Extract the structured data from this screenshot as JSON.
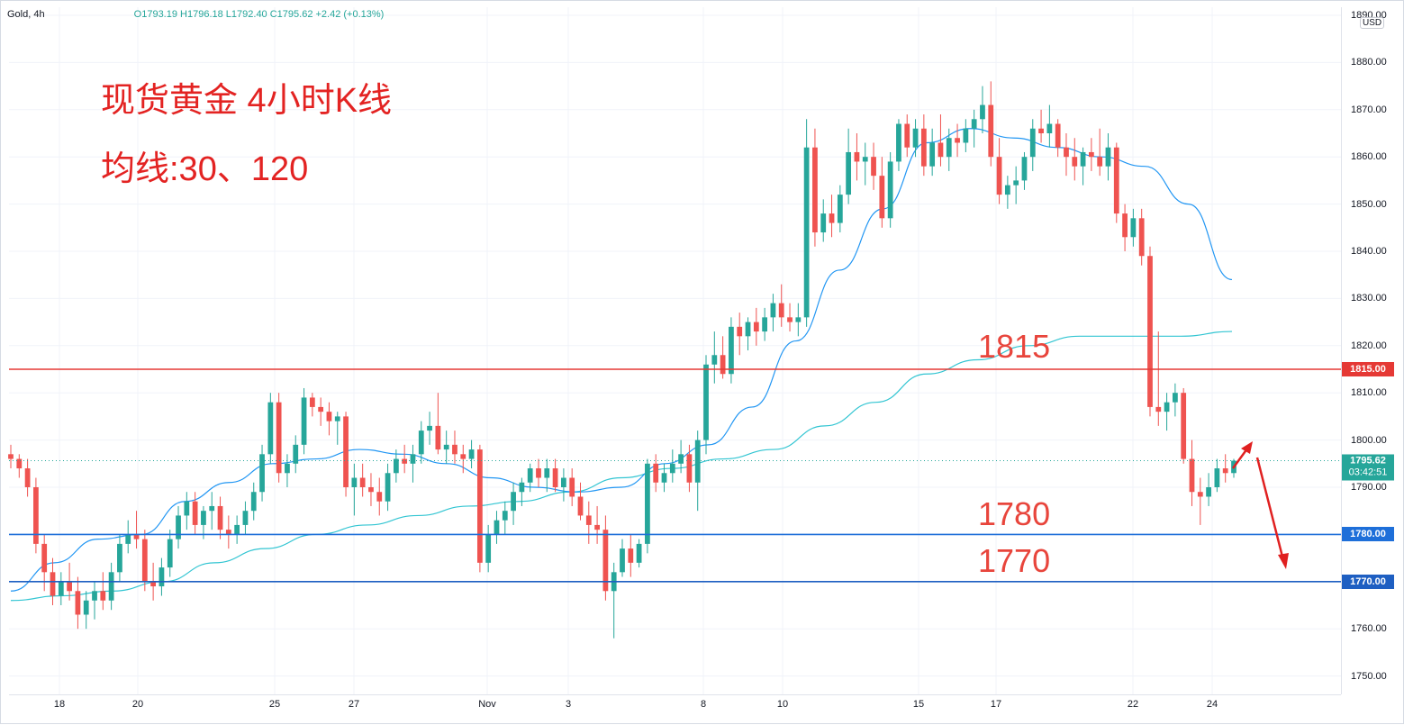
{
  "legend": {
    "symbol": "Gold, 4h",
    "ohlc": "O1793.19 H1796.18 L1792.40 C1795.62 +2.42 (+0.13%)"
  },
  "annotations": {
    "title": "现货黄金 4小时K线",
    "subtitle": "均线:30、120",
    "level_1815": "1815",
    "level_1780": "1780",
    "level_1770": "1770"
  },
  "axis": {
    "currency": "USD",
    "price_ticks": [
      "1890.00",
      "1880.00",
      "1870.00",
      "1860.00",
      "1850.00",
      "1840.00",
      "1830.00",
      "1820.00",
      "1810.00",
      "1800.00",
      "1790.00",
      "1780.00",
      "1770.00",
      "1760.00",
      "1750.00"
    ],
    "date_ticks": [
      "18",
      "20",
      "25",
      "27",
      "Nov",
      "3",
      "8",
      "10",
      "15",
      "17",
      "22",
      "24"
    ]
  },
  "price_tags": {
    "last_price": "1795.62",
    "countdown": "03:42:51",
    "line_1815": "1815.00",
    "line_1780": "1780.00",
    "line_1770": "1770.00"
  },
  "colors": {
    "up": "#26a69a",
    "down": "#ef5350",
    "ma30": "#2196f3",
    "ma120": "#32c5d2",
    "line_1815": "#e53935",
    "line_1780": "#1e6fd9",
    "line_1770": "#1e5fc2",
    "annotation": "#e32322"
  },
  "chart_data": {
    "type": "candlestick",
    "title": "现货黄金 4小时K线",
    "subtitle": "均线:30、120",
    "timeframe": "4h",
    "ylim": [
      1745,
      1892
    ],
    "grid": true,
    "x_labels": [
      "18",
      "20",
      "25",
      "27",
      "Nov",
      "3",
      "8",
      "10",
      "15",
      "17",
      "22",
      "24"
    ],
    "horizontal_lines": [
      1815,
      1780,
      1770
    ],
    "candles": [
      [
        1797,
        1799,
        1794,
        1796
      ],
      [
        1796,
        1797,
        1792,
        1794
      ],
      [
        1794,
        1796,
        1788,
        1790
      ],
      [
        1790,
        1792,
        1776,
        1778
      ],
      [
        1778,
        1780,
        1768,
        1772
      ],
      [
        1772,
        1775,
        1765,
        1767
      ],
      [
        1767,
        1772,
        1765,
        1770
      ],
      [
        1770,
        1774,
        1766,
        1768
      ],
      [
        1768,
        1771,
        1760,
        1763
      ],
      [
        1763,
        1768,
        1760,
        1766
      ],
      [
        1766,
        1770,
        1762,
        1768
      ],
      [
        1768,
        1772,
        1764,
        1766
      ],
      [
        1766,
        1774,
        1764,
        1772
      ],
      [
        1772,
        1780,
        1770,
        1778
      ],
      [
        1778,
        1783,
        1776,
        1780
      ],
      [
        1780,
        1785,
        1777,
        1779
      ],
      [
        1779,
        1781,
        1768,
        1770
      ],
      [
        1770,
        1774,
        1766,
        1769
      ],
      [
        1769,
        1775,
        1767,
        1773
      ],
      [
        1773,
        1781,
        1771,
        1779
      ],
      [
        1779,
        1786,
        1777,
        1784
      ],
      [
        1784,
        1789,
        1781,
        1787
      ],
      [
        1787,
        1789,
        1780,
        1782
      ],
      [
        1782,
        1786,
        1779,
        1785
      ],
      [
        1785,
        1789,
        1781,
        1786
      ],
      [
        1786,
        1788,
        1779,
        1781
      ],
      [
        1781,
        1784,
        1777,
        1780
      ],
      [
        1780,
        1784,
        1778,
        1782
      ],
      [
        1782,
        1787,
        1780,
        1785
      ],
      [
        1785,
        1791,
        1783,
        1789
      ],
      [
        1789,
        1799,
        1787,
        1797
      ],
      [
        1797,
        1810,
        1795,
        1808
      ],
      [
        1808,
        1810,
        1791,
        1793
      ],
      [
        1793,
        1797,
        1790,
        1795
      ],
      [
        1795,
        1801,
        1793,
        1799
      ],
      [
        1799,
        1811,
        1797,
        1809
      ],
      [
        1809,
        1810,
        1805,
        1807
      ],
      [
        1807,
        1809,
        1803,
        1806
      ],
      [
        1806,
        1808,
        1801,
        1804
      ],
      [
        1804,
        1806,
        1799,
        1805
      ],
      [
        1805,
        1806,
        1788,
        1790
      ],
      [
        1790,
        1795,
        1784,
        1792
      ],
      [
        1792,
        1795,
        1788,
        1790
      ],
      [
        1790,
        1793,
        1786,
        1789
      ],
      [
        1789,
        1792,
        1784,
        1787
      ],
      [
        1787,
        1795,
        1785,
        1793
      ],
      [
        1793,
        1798,
        1791,
        1796
      ],
      [
        1796,
        1799,
        1793,
        1795
      ],
      [
        1795,
        1799,
        1791,
        1797
      ],
      [
        1797,
        1804,
        1795,
        1802
      ],
      [
        1802,
        1806,
        1799,
        1803
      ],
      [
        1803,
        1810,
        1797,
        1798
      ],
      [
        1798,
        1802,
        1795,
        1799
      ],
      [
        1799,
        1802,
        1795,
        1797
      ],
      [
        1797,
        1799,
        1793,
        1796
      ],
      [
        1796,
        1800,
        1794,
        1798
      ],
      [
        1798,
        1799,
        1772,
        1774
      ],
      [
        1774,
        1782,
        1772,
        1780
      ],
      [
        1780,
        1785,
        1778,
        1783
      ],
      [
        1783,
        1787,
        1780,
        1785
      ],
      [
        1785,
        1791,
        1782,
        1789
      ],
      [
        1789,
        1792,
        1786,
        1791
      ],
      [
        1791,
        1795,
        1789,
        1794
      ],
      [
        1794,
        1796,
        1790,
        1792
      ],
      [
        1792,
        1796,
        1789,
        1794
      ],
      [
        1794,
        1796,
        1789,
        1790
      ],
      [
        1790,
        1794,
        1787,
        1792
      ],
      [
        1792,
        1794,
        1786,
        1788
      ],
      [
        1788,
        1791,
        1783,
        1784
      ],
      [
        1784,
        1787,
        1778,
        1782
      ],
      [
        1782,
        1786,
        1778,
        1781
      ],
      [
        1781,
        1784,
        1766,
        1768
      ],
      [
        1768,
        1774,
        1758,
        1772
      ],
      [
        1772,
        1779,
        1771,
        1777
      ],
      [
        1777,
        1780,
        1771,
        1774
      ],
      [
        1774,
        1779,
        1773,
        1778
      ],
      [
        1778,
        1796,
        1776,
        1795
      ],
      [
        1795,
        1797,
        1789,
        1791
      ],
      [
        1791,
        1795,
        1789,
        1793
      ],
      [
        1793,
        1798,
        1791,
        1795
      ],
      [
        1795,
        1800,
        1793,
        1797
      ],
      [
        1797,
        1799,
        1789,
        1791
      ],
      [
        1791,
        1802,
        1785,
        1800
      ],
      [
        1800,
        1818,
        1797,
        1816
      ],
      [
        1816,
        1823,
        1812,
        1818
      ],
      [
        1818,
        1822,
        1813,
        1814
      ],
      [
        1814,
        1826,
        1812,
        1824
      ],
      [
        1824,
        1827,
        1818,
        1822
      ],
      [
        1822,
        1826,
        1819,
        1825
      ],
      [
        1825,
        1828,
        1820,
        1823
      ],
      [
        1823,
        1828,
        1821,
        1826
      ],
      [
        1826,
        1831,
        1823,
        1829
      ],
      [
        1829,
        1833,
        1824,
        1826
      ],
      [
        1826,
        1829,
        1823,
        1825
      ],
      [
        1825,
        1829,
        1822,
        1826
      ],
      [
        1826,
        1868,
        1824,
        1862
      ],
      [
        1862,
        1866,
        1841,
        1844
      ],
      [
        1844,
        1851,
        1842,
        1848
      ],
      [
        1848,
        1852,
        1843,
        1846
      ],
      [
        1846,
        1854,
        1844,
        1852
      ],
      [
        1852,
        1866,
        1850,
        1861
      ],
      [
        1861,
        1865,
        1855,
        1859
      ],
      [
        1859,
        1863,
        1854,
        1860
      ],
      [
        1860,
        1863,
        1853,
        1856
      ],
      [
        1856,
        1860,
        1845,
        1847
      ],
      [
        1847,
        1861,
        1845,
        1859
      ],
      [
        1859,
        1868,
        1857,
        1867
      ],
      [
        1867,
        1869,
        1860,
        1862
      ],
      [
        1862,
        1868,
        1860,
        1866
      ],
      [
        1866,
        1869,
        1856,
        1858
      ],
      [
        1858,
        1866,
        1856,
        1863
      ],
      [
        1863,
        1869,
        1858,
        1860
      ],
      [
        1860,
        1866,
        1857,
        1864
      ],
      [
        1864,
        1867,
        1860,
        1863
      ],
      [
        1863,
        1868,
        1861,
        1866
      ],
      [
        1866,
        1870,
        1862,
        1868
      ],
      [
        1868,
        1875,
        1865,
        1871
      ],
      [
        1871,
        1876,
        1858,
        1860
      ],
      [
        1860,
        1864,
        1850,
        1852
      ],
      [
        1852,
        1856,
        1849,
        1854
      ],
      [
        1854,
        1858,
        1850,
        1855
      ],
      [
        1855,
        1861,
        1853,
        1860
      ],
      [
        1860,
        1868,
        1857,
        1866
      ],
      [
        1866,
        1870,
        1863,
        1865
      ],
      [
        1865,
        1871,
        1862,
        1867
      ],
      [
        1867,
        1868,
        1860,
        1862
      ],
      [
        1862,
        1865,
        1856,
        1860
      ],
      [
        1860,
        1864,
        1855,
        1858
      ],
      [
        1858,
        1862,
        1854,
        1861
      ],
      [
        1861,
        1864,
        1857,
        1860
      ],
      [
        1860,
        1866,
        1856,
        1858
      ],
      [
        1858,
        1865,
        1855,
        1862
      ],
      [
        1862,
        1863,
        1846,
        1848
      ],
      [
        1848,
        1850,
        1840,
        1843
      ],
      [
        1843,
        1849,
        1841,
        1847
      ],
      [
        1847,
        1849,
        1837,
        1839
      ],
      [
        1839,
        1841,
        1805,
        1807
      ],
      [
        1807,
        1823,
        1803,
        1806
      ],
      [
        1806,
        1810,
        1802,
        1808
      ],
      [
        1808,
        1812,
        1805,
        1810
      ],
      [
        1810,
        1811,
        1795,
        1796
      ],
      [
        1796,
        1800,
        1786,
        1789
      ],
      [
        1789,
        1792,
        1782,
        1788
      ],
      [
        1788,
        1793,
        1786,
        1790
      ],
      [
        1790,
        1796,
        1789,
        1794
      ],
      [
        1794,
        1797,
        1791,
        1793
      ],
      [
        1793,
        1796,
        1792,
        1795.62
      ]
    ],
    "series": [
      {
        "name": "MA30",
        "period": 30,
        "values": [
          1768,
          1774,
          1779,
          1780,
          1787,
          1791,
          1795,
          1796,
          1798,
          1797,
          1795,
          1792,
          1790,
          1789,
          1790,
          1795,
          1799,
          1807,
          1821,
          1836,
          1849,
          1863,
          1866,
          1864,
          1862,
          1860,
          1858,
          1850,
          1834
        ]
      },
      {
        "name": "MA120",
        "period": 120,
        "values": [
          1766,
          1767,
          1768,
          1770,
          1774,
          1777,
          1780,
          1782,
          1784,
          1786,
          1787,
          1789,
          1792,
          1794,
          1796,
          1798,
          1803,
          1808,
          1814,
          1817,
          1820,
          1822,
          1822,
          1822,
          1823
        ]
      }
    ]
  }
}
